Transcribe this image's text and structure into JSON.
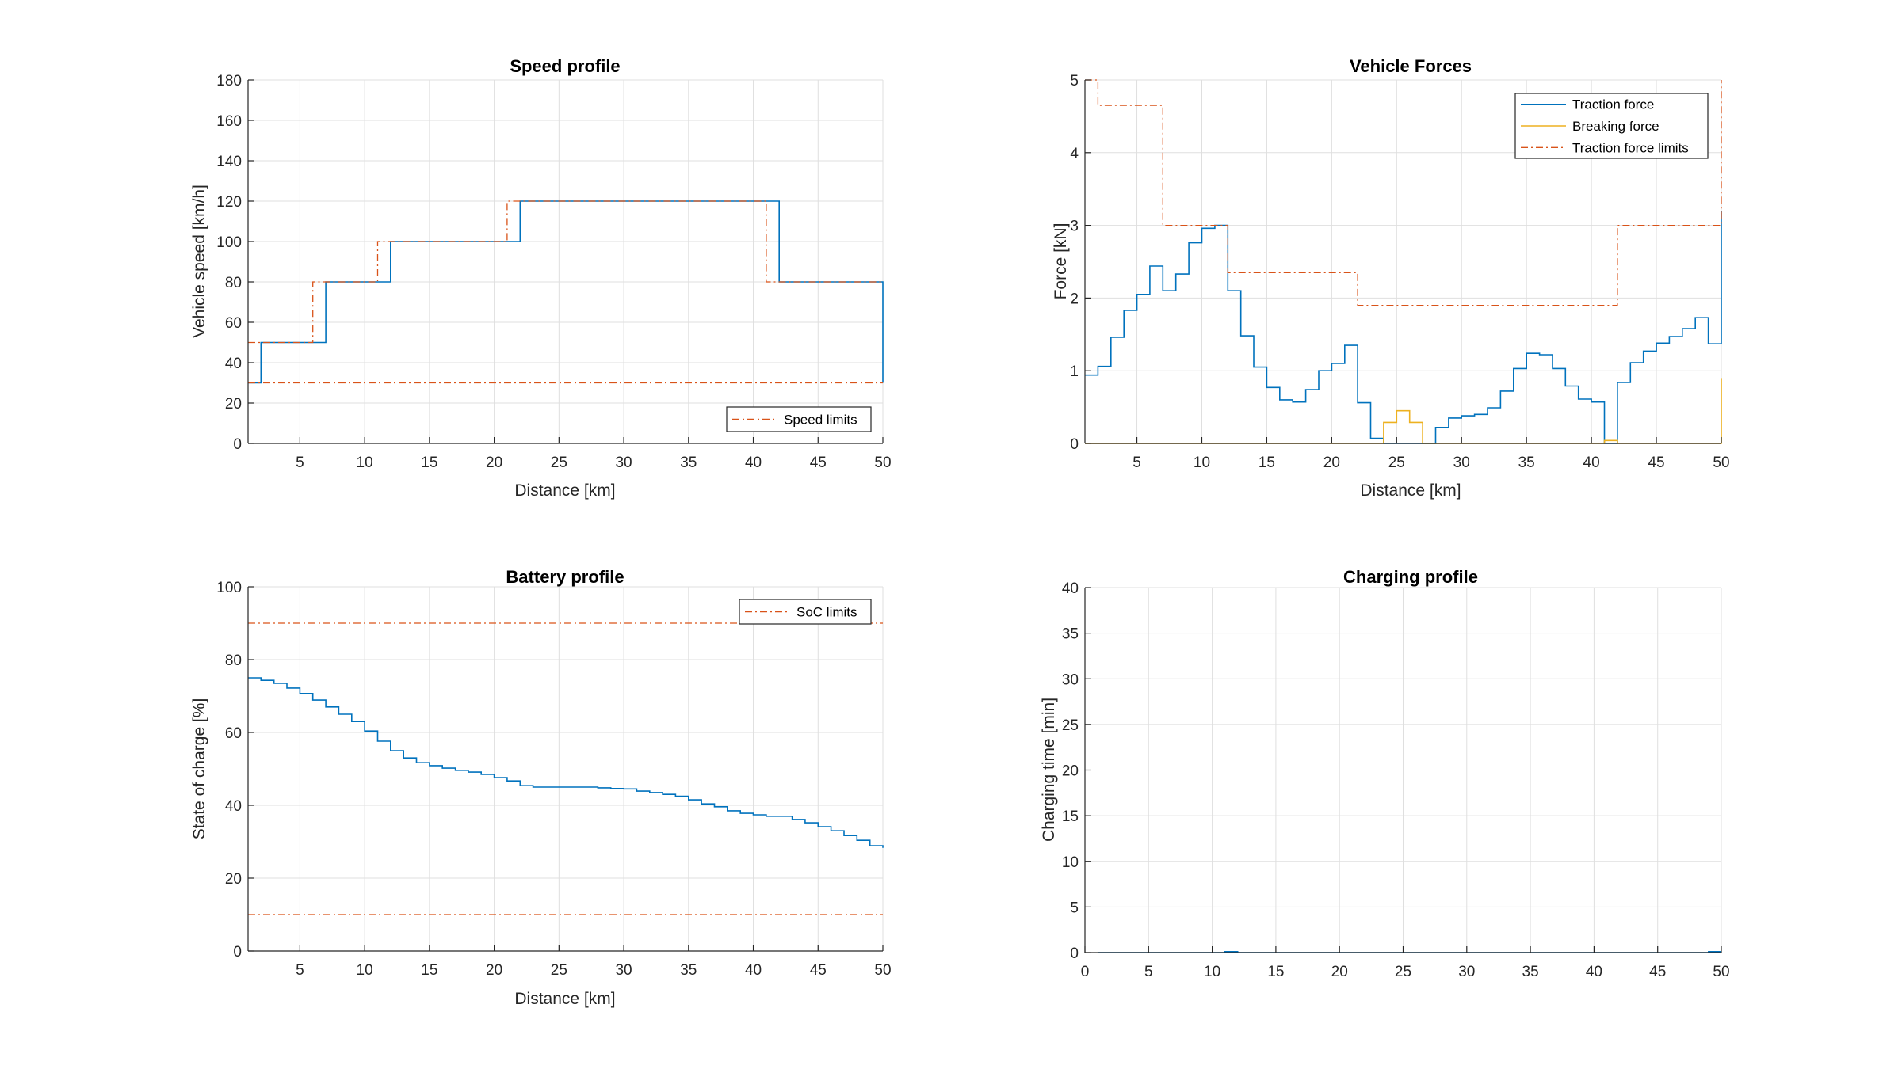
{
  "figure": {
    "background": "#ffffff"
  },
  "colors": {
    "blue": "#0072BD",
    "orange": "#EDB120",
    "red": "#D95319"
  },
  "chart_data": [
    {
      "id": "speed",
      "type": "line",
      "title": "Speed profile",
      "xlabel": "Distance [km]",
      "ylabel": "Vehicle speed [km/h]",
      "xlim": [
        1,
        50
      ],
      "ylim": [
        0,
        180
      ],
      "xticks": [
        5,
        10,
        15,
        20,
        25,
        30,
        35,
        40,
        45,
        50
      ],
      "yticks": [
        0,
        20,
        40,
        60,
        80,
        100,
        120,
        140,
        160,
        180
      ],
      "grid": true,
      "legend": {
        "placement": "bottom-right",
        "entries": [
          "Speed limits"
        ]
      },
      "series": [
        {
          "name": "Vehicle speed",
          "style": "solid",
          "color": "blue",
          "legend": false,
          "x": [
            1,
            2,
            2,
            7,
            7,
            12,
            12,
            22,
            22,
            42,
            42,
            50,
            50
          ],
          "y": [
            30,
            30,
            50,
            50,
            80,
            80,
            100,
            100,
            120,
            120,
            80,
            80,
            30
          ]
        },
        {
          "name": "Speed limits",
          "style": "dashdot",
          "color": "red",
          "legend": true,
          "x": [
            1,
            6,
            6,
            11,
            11,
            21,
            21,
            41,
            41,
            50
          ],
          "y": [
            50,
            50,
            80,
            80,
            100,
            100,
            120,
            120,
            80,
            80
          ]
        },
        {
          "name": "Speed limits (min)",
          "style": "dashdot",
          "color": "red",
          "legend": false,
          "x": [
            1,
            50
          ],
          "y": [
            30,
            30
          ]
        }
      ]
    },
    {
      "id": "forces",
      "type": "line",
      "title": "Vehicle Forces",
      "xlabel": "Distance [km]",
      "ylabel": "Force [kN]",
      "xlim": [
        1,
        50
      ],
      "ylim": [
        0,
        5
      ],
      "xticks": [
        5,
        10,
        15,
        20,
        25,
        30,
        35,
        40,
        45,
        50
      ],
      "yticks": [
        0,
        1,
        2,
        3,
        4,
        5
      ],
      "grid": true,
      "legend": {
        "placement": "top-right",
        "entries": [
          "Traction force",
          "Breaking force",
          "Traction force limits"
        ]
      },
      "series": [
        {
          "name": "Traction force",
          "style": "solid",
          "color": "blue",
          "legend": true,
          "stairs": true,
          "x_start": 1,
          "values": [
            0.94,
            1.06,
            1.46,
            1.83,
            2.05,
            2.44,
            2.1,
            2.33,
            2.76,
            2.96,
            3.0,
            2.1,
            1.48,
            1.05,
            0.77,
            0.6,
            0.57,
            0.74,
            1.0,
            1.1,
            1.35,
            0.56,
            0.07,
            0,
            0,
            0,
            0,
            0.22,
            0.35,
            0.38,
            0.4,
            0.49,
            0.72,
            1.03,
            1.24,
            1.22,
            1.03,
            0.79,
            0.61,
            0.57,
            0,
            0.84,
            1.11,
            1.27,
            1.38,
            1.47,
            1.58,
            1.73,
            1.37
          ],
          "end_value": 3.2
        },
        {
          "name": "Breaking force",
          "style": "solid",
          "color": "orange",
          "legend": true,
          "stairs": true,
          "x_start": 1,
          "values": [
            0,
            0,
            0,
            0,
            0,
            0,
            0,
            0,
            0,
            0,
            0,
            0,
            0,
            0,
            0,
            0,
            0,
            0,
            0,
            0,
            0,
            0,
            0,
            0.29,
            0.45,
            0.29,
            0,
            0,
            0,
            0,
            0,
            0,
            0,
            0,
            0,
            0,
            0,
            0,
            0,
            0,
            0.04,
            0,
            0,
            0,
            0,
            0,
            0,
            0,
            0
          ],
          "end_value": 0.9
        },
        {
          "name": "Traction force limits",
          "style": "dashdot",
          "color": "red",
          "legend": true,
          "x": [
            1,
            2,
            2,
            7,
            7,
            12,
            12,
            22,
            22,
            42,
            42,
            50,
            50
          ],
          "y": [
            5,
            5,
            4.65,
            4.65,
            3.0,
            3.0,
            2.35,
            2.35,
            1.9,
            1.9,
            3.0,
            3.0,
            5
          ]
        }
      ]
    },
    {
      "id": "battery",
      "type": "line",
      "title": "Battery profile",
      "xlabel": "Distance [km]",
      "ylabel": "State of charge [%]",
      "xlim": [
        1,
        50
      ],
      "ylim": [
        0,
        100
      ],
      "xticks": [
        5,
        10,
        15,
        20,
        25,
        30,
        35,
        40,
        45,
        50
      ],
      "yticks": [
        0,
        20,
        40,
        60,
        80,
        100
      ],
      "grid": true,
      "legend": {
        "placement": "top-right",
        "entries": [
          "SoC limits"
        ]
      },
      "series": [
        {
          "name": "State of charge",
          "style": "solid",
          "color": "blue",
          "legend": false,
          "stairs": true,
          "x_start": 1,
          "values": [
            75.0,
            74.3,
            73.5,
            72.2,
            70.7,
            68.9,
            67.0,
            65.0,
            63.0,
            60.4,
            57.6,
            55.0,
            53.0,
            51.7,
            50.9,
            50.2,
            49.6,
            49.1,
            48.5,
            47.6,
            46.7,
            45.4,
            45.0,
            45.0,
            45.0,
            45.0,
            45.0,
            44.8,
            44.6,
            44.5,
            43.9,
            43.5,
            43.0,
            42.5,
            41.5,
            40.4,
            39.6,
            38.5,
            37.8,
            37.4,
            37.0,
            37.0,
            36.1,
            35.2,
            34.1,
            33.0,
            31.7,
            30.4,
            28.9
          ],
          "end_value": 28.3
        },
        {
          "name": "SoC limits",
          "style": "dashdot",
          "color": "red",
          "legend": true,
          "x": [
            1,
            50
          ],
          "y": [
            90,
            90
          ]
        },
        {
          "name": "SoC limits (min)",
          "style": "dashdot",
          "color": "red",
          "legend": false,
          "x": [
            1,
            50
          ],
          "y": [
            10,
            10
          ]
        }
      ]
    },
    {
      "id": "charging",
      "type": "line",
      "title": "Charging profile",
      "xlabel": "",
      "ylabel": "Charging time [min]",
      "xlim": [
        0,
        50
      ],
      "ylim": [
        0,
        40
      ],
      "xticks": [
        0,
        5,
        10,
        15,
        20,
        25,
        30,
        35,
        40,
        45,
        50
      ],
      "yticks": [
        0,
        5,
        10,
        15,
        20,
        25,
        30,
        35,
        40
      ],
      "grid": true,
      "legend": null,
      "series": [
        {
          "name": "Charging time",
          "style": "solid",
          "color": "blue",
          "legend": false,
          "stairs": true,
          "x_start": 1,
          "values": [
            0,
            0,
            0,
            0,
            0,
            0,
            0,
            0,
            0,
            0,
            0.1,
            0,
            0,
            0,
            0,
            0,
            0,
            0,
            0,
            0,
            0,
            0,
            0,
            0,
            0,
            0,
            0,
            0,
            0,
            0,
            0,
            0,
            0,
            0,
            0,
            0,
            0,
            0,
            0,
            0,
            0,
            0,
            0,
            0,
            0,
            0,
            0,
            0,
            0.1
          ],
          "end_value": 0.1
        }
      ]
    }
  ]
}
